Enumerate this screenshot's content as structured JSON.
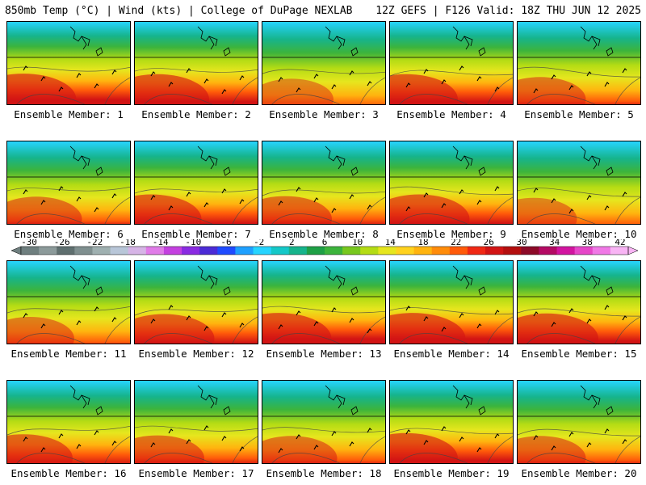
{
  "header": {
    "left": "850mb Temp (°C) | Wind (kts) | College of DuPage NEXLAB",
    "right": "12Z GEFS | F126 Valid: 18Z THU JUN 12 2025"
  },
  "member_prefix": "Ensemble Member: ",
  "members": [
    {
      "label": "Ensemble Member: 1",
      "hot": 0.85
    },
    {
      "label": "Ensemble Member: 2",
      "hot": 0.8
    },
    {
      "label": "Ensemble Member: 3",
      "hot": 0.4
    },
    {
      "label": "Ensemble Member: 4",
      "hot": 0.8
    },
    {
      "label": "Ensemble Member: 5",
      "hot": 0.55
    },
    {
      "label": "Ensemble Member: 6",
      "hot": 0.55
    },
    {
      "label": "Ensemble Member: 7",
      "hot": 0.75
    },
    {
      "label": "Ensemble Member: 8",
      "hot": 0.6
    },
    {
      "label": "Ensemble Member: 9",
      "hot": 0.75
    },
    {
      "label": "Ensemble Member: 10",
      "hot": 0.45
    },
    {
      "label": "Ensemble Member: 11",
      "hot": 0.5
    },
    {
      "label": "Ensemble Member: 12",
      "hot": 0.75
    },
    {
      "label": "Ensemble Member: 13",
      "hot": 0.85
    },
    {
      "label": "Ensemble Member: 14",
      "hot": 0.85
    },
    {
      "label": "Ensemble Member: 15",
      "hot": 0.8
    },
    {
      "label": "Ensemble Member: 16",
      "hot": 0.7
    },
    {
      "label": "Ensemble Member: 17",
      "hot": 0.6
    },
    {
      "label": "Ensemble Member: 18",
      "hot": 0.55
    },
    {
      "label": "Ensemble Member: 19",
      "hot": 0.8
    },
    {
      "label": "Ensemble Member: 20",
      "hot": 0.55
    }
  ],
  "colorbar": {
    "ticks": [
      "-30",
      "-26",
      "-22",
      "-18",
      "-14",
      "-10",
      "-6",
      "-2",
      "2",
      "6",
      "10",
      "14",
      "18",
      "22",
      "26",
      "30",
      "34",
      "38",
      "42"
    ],
    "colors": [
      "#6f7f7f",
      "#8c9a9a",
      "#5f6f6f",
      "#7f8f8f",
      "#9fb0b0",
      "#b8c6d8",
      "#d6b4e6",
      "#e07ce8",
      "#c440e0",
      "#8a2be2",
      "#4b2bd6",
      "#1f4bff",
      "#1ea0ff",
      "#26d4ff",
      "#14c8c8",
      "#16b48c",
      "#1ea046",
      "#3cb43c",
      "#78c81e",
      "#b4dc14",
      "#e6e61e",
      "#ffd21e",
      "#ffb40f",
      "#ff8c0a",
      "#ff5a0a",
      "#f02814",
      "#d21414",
      "#b40f0f",
      "#8c0a28",
      "#b40a64",
      "#d214a0",
      "#e646c8",
      "#f078e6",
      "#f8b4f4"
    ]
  }
}
